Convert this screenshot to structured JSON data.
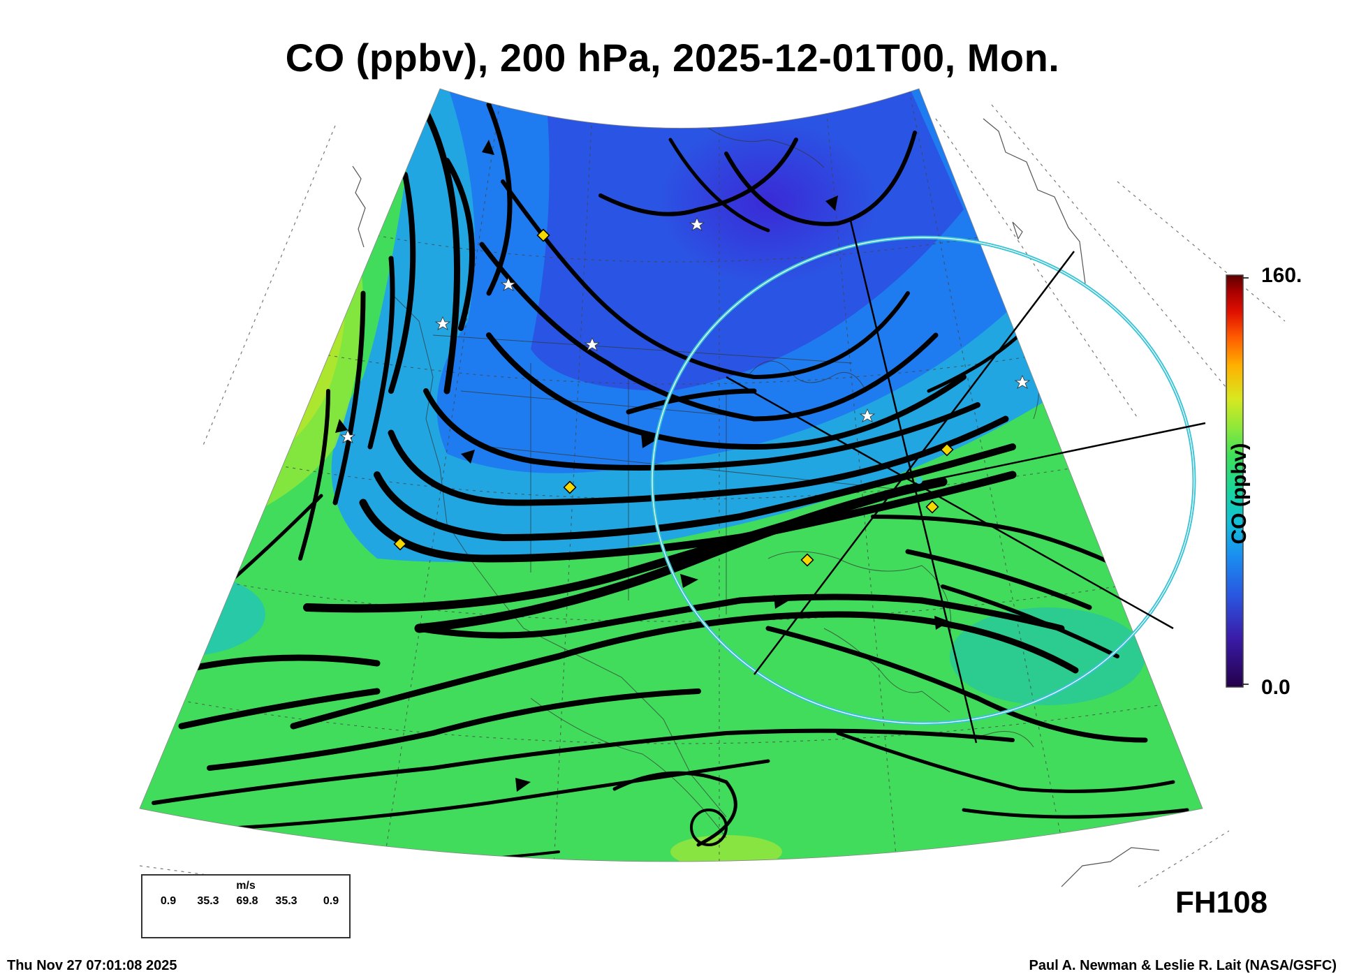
{
  "title": "CO (ppbv), 200 hPa, 2025-12-01T00, Mon.",
  "colorbar": {
    "max_label": "160.",
    "min_label": "0.0",
    "label": "CO (ppbv)",
    "range": [
      0,
      160
    ],
    "colors": [
      "#24004a",
      "#3a1ca8",
      "#2a55e0",
      "#1a8ff0",
      "#13c0d8",
      "#1ad69a",
      "#3ee05a",
      "#8ee83a",
      "#d8e820",
      "#ffb000",
      "#ff5a00",
      "#e01000",
      "#a80000",
      "#5c0000"
    ]
  },
  "forecast_hour": "FH108",
  "timestamp": "Thu Nov 27 07:01:08 2025",
  "credit": "Paul A. Newman & Leslie R. Lait (NASA/GSFC)",
  "wind_scale": {
    "unit": "m/s",
    "values": [
      "0.9",
      "35.3",
      "69.8",
      "35.3",
      "0.9"
    ]
  },
  "colors": {
    "field_low": "#2e3fd8",
    "field_mid": "#1e88f0",
    "field_high": "#3edc5a",
    "marker_yellow": "#f5d800",
    "circle": "#39c4d6"
  }
}
